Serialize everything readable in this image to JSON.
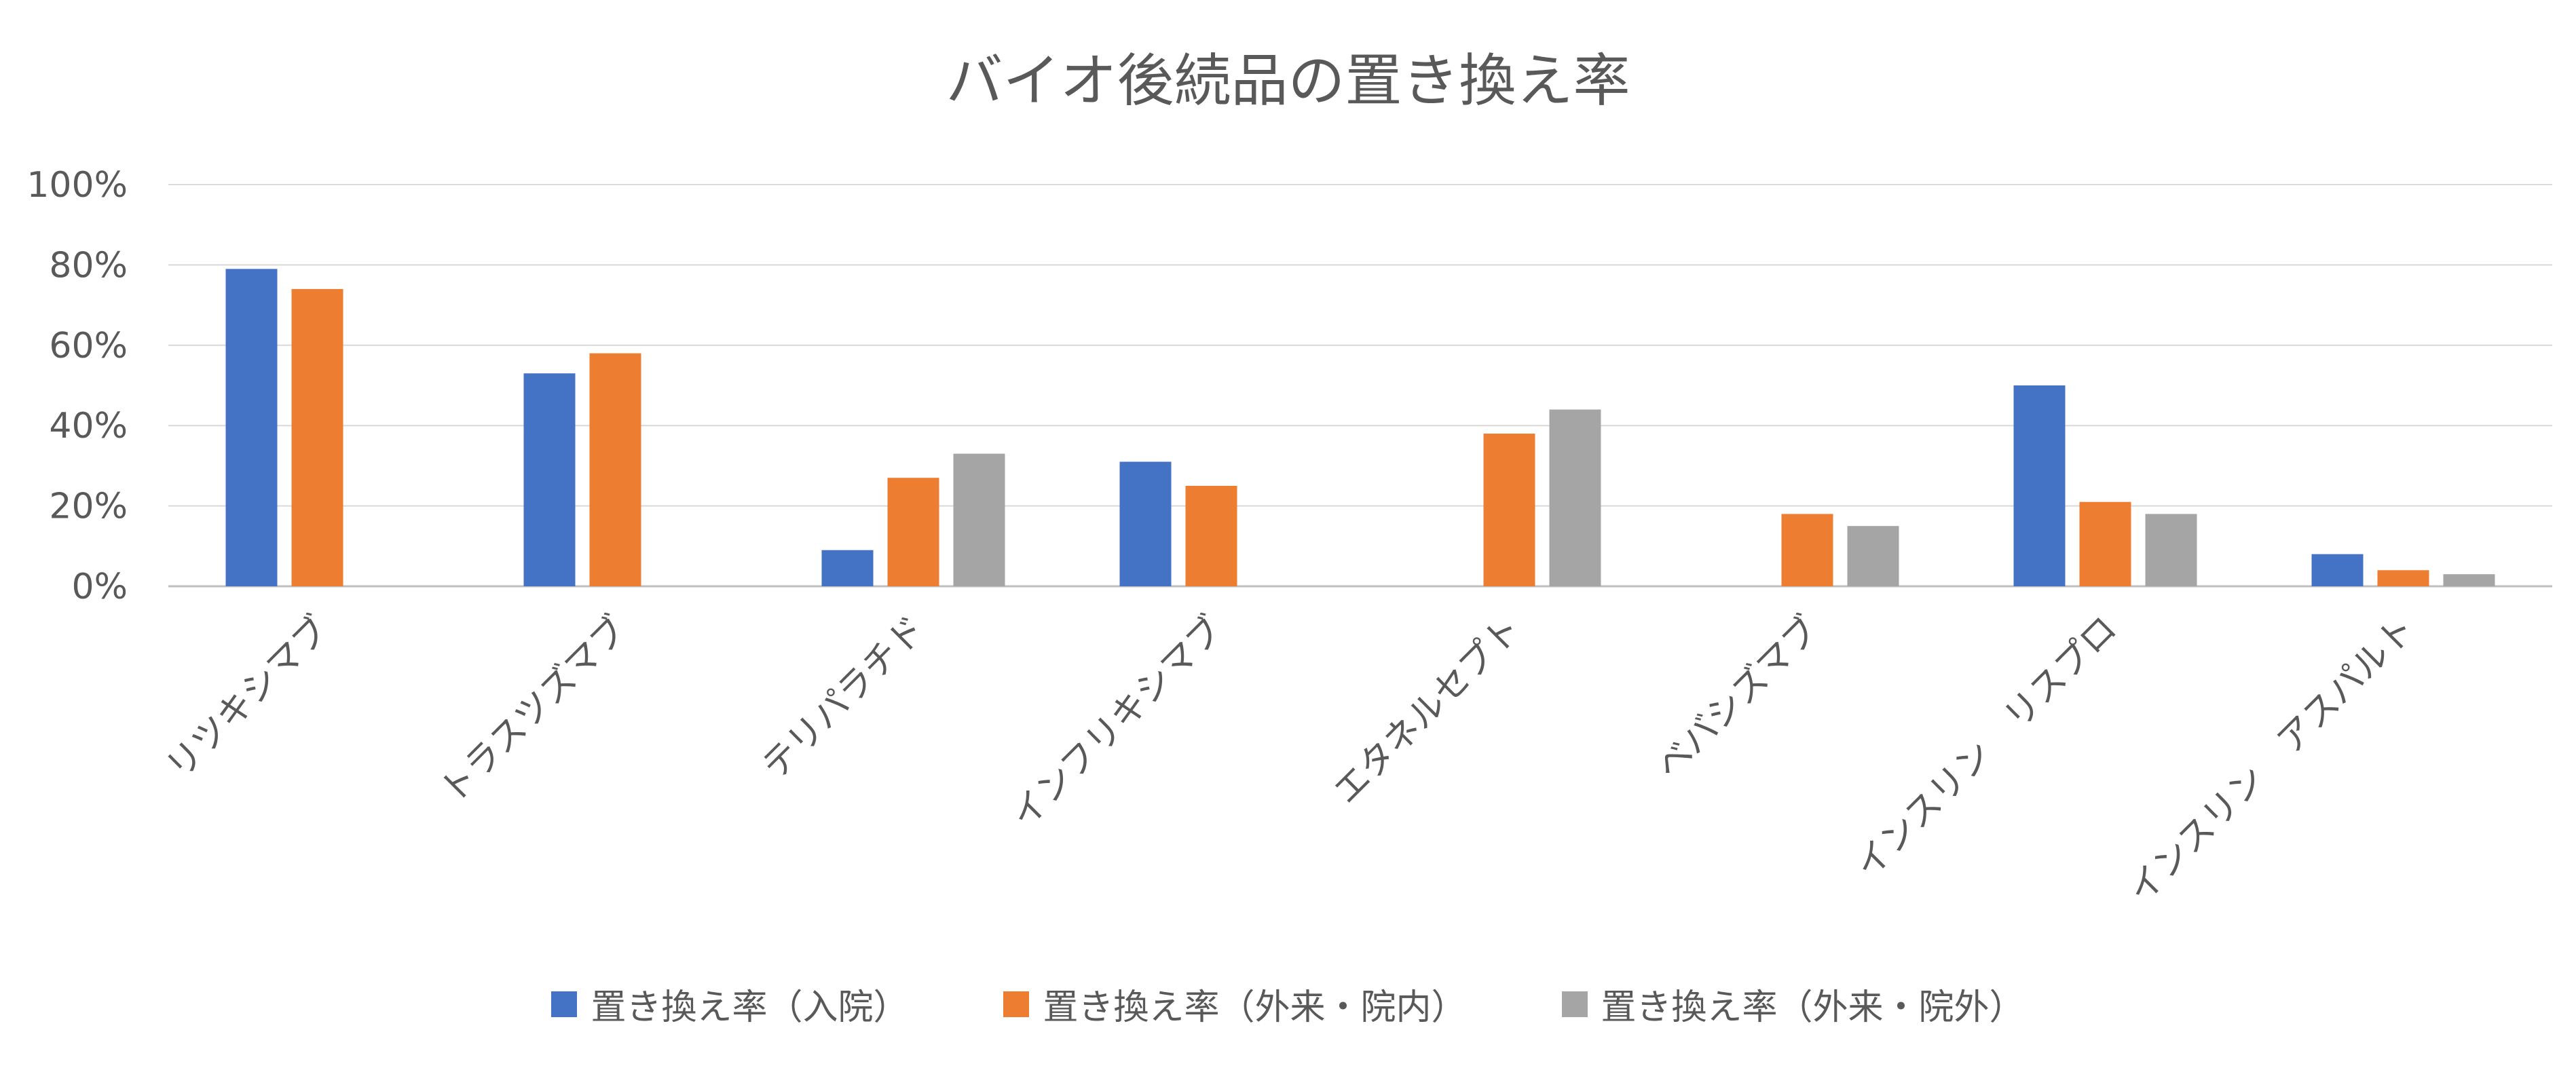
{
  "chart_data": {
    "type": "bar",
    "title": "バイオ後続品の置き換え率",
    "categories": [
      "リツキシマブ",
      "トラスツズマブ",
      "テリパラチド",
      "インフリキシマブ",
      "エタネルセプト",
      "ベバシズマブ",
      "インスリン　リスプロ",
      "インスリン　アスパルト"
    ],
    "series": [
      {
        "name": "置き換え率（入院）",
        "color": "#4472C4",
        "values": [
          0.79,
          0.53,
          0.09,
          0.31,
          null,
          null,
          0.5,
          0.08
        ]
      },
      {
        "name": "置き換え率（外来・院内）",
        "color": "#ED7D31",
        "values": [
          0.74,
          0.58,
          0.27,
          0.25,
          0.38,
          0.18,
          0.21,
          0.04
        ]
      },
      {
        "name": "置き換え率（外来・院外）",
        "color": "#A5A5A5",
        "values": [
          null,
          null,
          0.33,
          null,
          0.44,
          0.15,
          0.18,
          0.03
        ]
      }
    ],
    "ylim": [
      0,
      1
    ],
    "yticks": [
      "0%",
      "20%",
      "40%",
      "60%",
      "80%",
      "100%"
    ],
    "xlabel": "",
    "ylabel": "",
    "grid": true,
    "legend_position": "bottom"
  }
}
